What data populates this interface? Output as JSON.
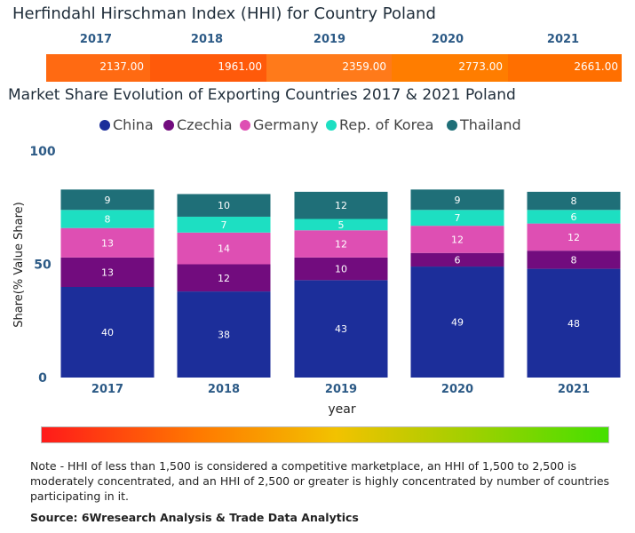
{
  "hhi": {
    "title": "Herfindahl Hirschman Index (HHI) for Country Poland",
    "years": [
      "2017",
      "2018",
      "2019",
      "2020",
      "2021"
    ],
    "values": [
      "2137.00",
      "1961.00",
      "2359.00",
      "2773.00",
      "2661.00"
    ],
    "colors": [
      "#ff6a12",
      "#ff5a0a",
      "#ff7a1a",
      "#ff7d00",
      "#ff6f00"
    ]
  },
  "chart_data": {
    "type": "bar",
    "stacked": true,
    "title": "Market Share Evolution of Exporting Countries 2017 & 2021 Poland",
    "xlabel": "year",
    "ylabel": "Share(% Value Share)",
    "ylim": [
      0,
      100
    ],
    "yticks": [
      "0",
      "50",
      "100"
    ],
    "categories": [
      "2017",
      "2018",
      "2019",
      "2020",
      "2021"
    ],
    "legend_position": "top",
    "series": [
      {
        "name": "China",
        "color": "#1c2e9a",
        "values": [
          40,
          38,
          43,
          49,
          48
        ]
      },
      {
        "name": "Czechia",
        "color": "#720c7e",
        "values": [
          13,
          12,
          10,
          6,
          8
        ]
      },
      {
        "name": "Germany",
        "color": "#de4fb3",
        "values": [
          13,
          14,
          12,
          12,
          12
        ]
      },
      {
        "name": "Rep. of Korea",
        "color": "#1ddfc2",
        "values": [
          8,
          7,
          5,
          7,
          6
        ]
      },
      {
        "name": "Thailand",
        "color": "#1f6f78",
        "values": [
          9,
          10,
          12,
          9,
          8
        ]
      }
    ]
  },
  "footer": {
    "note": "Note - HHI of less than 1,500 is considered a competitive marketplace, an HHI of 1,500 to 2,500 is moderately concentrated, and an HHI of 2,500 or greater is highly concentrated by number of countries participating in it.",
    "source": "Source: 6Wresearch Analysis & Trade Data Analytics"
  }
}
